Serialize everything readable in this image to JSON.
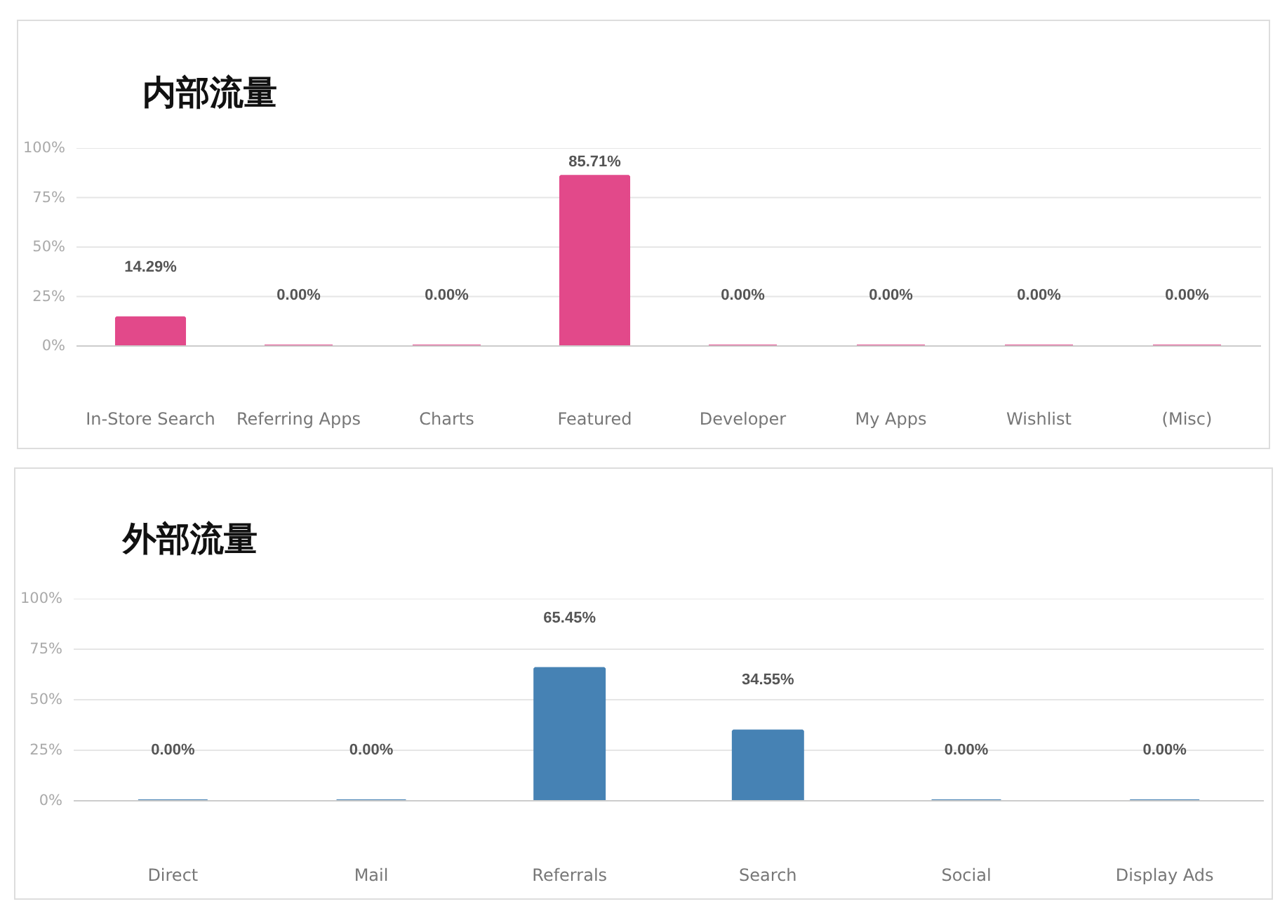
{
  "chart_data": [
    {
      "type": "bar",
      "title": "内部流量",
      "categories": [
        "In-Store Search",
        "Referring Apps",
        "Charts",
        "Featured",
        "Developer",
        "My Apps",
        "Wishlist",
        "(Misc)"
      ],
      "values": [
        14.29,
        0,
        0,
        85.71,
        0,
        0,
        0,
        0
      ],
      "value_labels": [
        "14.29%",
        "0.00%",
        "0.00%",
        "85.71%",
        "0.00%",
        "0.00%",
        "0.00%",
        "0.00%"
      ],
      "color": "#e2498a",
      "ylim": [
        0,
        100
      ],
      "yticks": [
        {
          "value": 0,
          "label": "0%"
        },
        {
          "value": 25,
          "label": "25%"
        },
        {
          "value": 50,
          "label": "50%"
        },
        {
          "value": 75,
          "label": "75%"
        },
        {
          "value": 100,
          "label": "100%"
        }
      ],
      "grid": "y"
    },
    {
      "type": "bar",
      "title": "外部流量",
      "categories": [
        "Direct",
        "Mail",
        "Referrals",
        "Search",
        "Social",
        "Display Ads"
      ],
      "values": [
        0,
        0,
        65.45,
        34.55,
        0,
        0
      ],
      "value_labels": [
        "0.00%",
        "0.00%",
        "65.45%",
        "34.55%",
        "0.00%",
        "0.00%"
      ],
      "color": "#4682b4",
      "ylim": [
        0,
        100
      ],
      "yticks": [
        {
          "value": 0,
          "label": "0%"
        },
        {
          "value": 25,
          "label": "25%"
        },
        {
          "value": 50,
          "label": "50%"
        },
        {
          "value": 75,
          "label": "75%"
        },
        {
          "value": 100,
          "label": "100%"
        }
      ],
      "grid": "y"
    }
  ]
}
